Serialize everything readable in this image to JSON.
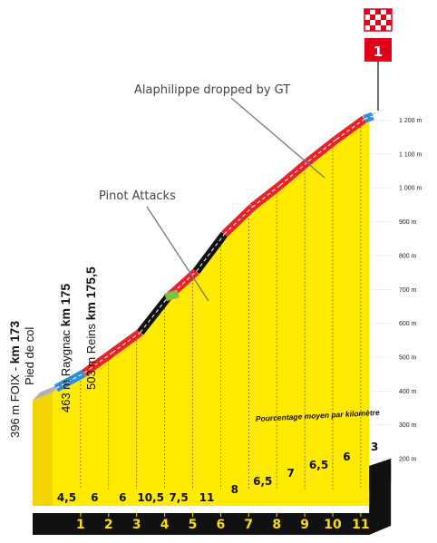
{
  "chart_data": {
    "type": "area",
    "title": "",
    "xlabel": "",
    "ylabel": "",
    "y_unit": "m",
    "ylim": [
      200,
      1200
    ],
    "y_ticks": [
      {
        "value": 200,
        "label": "200 m"
      },
      {
        "value": 300,
        "label": "300 m"
      },
      {
        "value": 400,
        "label": "400 m"
      },
      {
        "value": 500,
        "label": "500 m"
      },
      {
        "value": 600,
        "label": "600 m"
      },
      {
        "value": 700,
        "label": "700 m"
      },
      {
        "value": 800,
        "label": "800 m"
      },
      {
        "value": 900,
        "label": "900 m"
      },
      {
        "value": 1000,
        "label": "1 000 m"
      },
      {
        "value": 1100,
        "label": "1 100 m"
      },
      {
        "value": 1200,
        "label": "1 200 m"
      }
    ],
    "km_markers": [
      "1",
      "2",
      "3",
      "4",
      "5",
      "6",
      "7",
      "8",
      "9",
      "10",
      "11"
    ],
    "km_gradients": [
      "4,5",
      "6",
      "6",
      "10,5",
      "7,5",
      "11",
      "8",
      "6,5",
      "7",
      "6,5",
      "6",
      "3"
    ],
    "profile": [
      {
        "km": 0,
        "altitude": 396
      },
      {
        "km": 1,
        "altitude": 441
      },
      {
        "km": 2,
        "altitude": 501
      },
      {
        "km": 3,
        "altitude": 561
      },
      {
        "km": 4,
        "altitude": 666
      },
      {
        "km": 5,
        "altitude": 741
      },
      {
        "km": 6,
        "altitude": 851
      },
      {
        "km": 7,
        "altitude": 931
      },
      {
        "km": 8,
        "altitude": 996
      },
      {
        "km": 9,
        "altitude": 1066
      },
      {
        "km": 10,
        "altitude": 1131
      },
      {
        "km": 11,
        "altitude": 1191
      },
      {
        "km": 11.3,
        "altitude": 1200
      }
    ],
    "waypoints": [
      {
        "alt": "396 m",
        "name": "FOIX - ",
        "km_label": "km 173",
        "sub": "Pied de col"
      },
      {
        "alt": "463 m",
        "name": "Raygnac ",
        "km_label": "km 175"
      },
      {
        "alt": "503 m",
        "name": "Reins ",
        "km_label": "km 175,5"
      }
    ],
    "annotations": [
      {
        "text": "Alaphilippe dropped by GT"
      },
      {
        "text": "Pinot Attacks"
      }
    ],
    "note": "Pourcentage moyen par kilomètre",
    "finish_label": "1",
    "colors": {
      "fill": "#ffea00",
      "side": "#f2d400",
      "grid": "#555555",
      "road_low": "#2f8fd8",
      "road_mid": "#e8232b",
      "road_steep": "#111111",
      "road_flat": "#7cc242",
      "km_band": "#111111",
      "finish_red": "#e3001b"
    }
  }
}
